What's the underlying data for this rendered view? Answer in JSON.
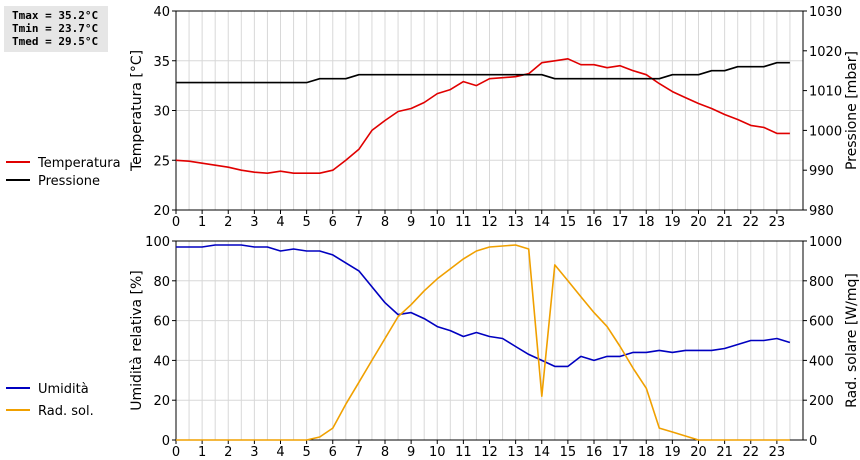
{
  "stats": {
    "tmax": "Tmax = 35.2°C",
    "tmin": "Tmin = 23.7°C",
    "tmed": "Tmed = 29.5°C"
  },
  "chart_data": [
    {
      "type": "line",
      "x_ticks": [
        "0",
        "1",
        "2",
        "3",
        "4",
        "5",
        "6",
        "7",
        "8",
        "9",
        "10",
        "11",
        "12",
        "13",
        "14",
        "15",
        "16",
        "17",
        "18",
        "19",
        "20",
        "21",
        "22",
        "23"
      ],
      "xlim": [
        0,
        24
      ],
      "ylabel_left": "Temperatura [°C]",
      "ylabel_right": "Pressione [mbar]",
      "ylim_left": [
        20,
        40
      ],
      "ylim_right": [
        980,
        1030
      ],
      "yticks_left": [
        20,
        25,
        30,
        35,
        40
      ],
      "yticks_right": [
        980,
        990,
        1000,
        1010,
        1020,
        1030
      ],
      "grid": true,
      "legend_placement": "left",
      "series": [
        {
          "name": "Temperatura",
          "axis": "left",
          "color": "#e00000",
          "x": [
            0,
            0.5,
            1,
            1.5,
            2,
            2.5,
            3,
            3.5,
            4,
            4.5,
            5,
            5.5,
            6,
            6.5,
            7,
            7.5,
            8,
            8.5,
            9,
            9.5,
            10,
            10.5,
            11,
            11.5,
            12,
            12.5,
            13,
            13.5,
            14,
            14.5,
            15,
            15.5,
            16,
            16.5,
            17,
            17.5,
            18,
            18.5,
            19,
            19.5,
            20,
            20.5,
            21,
            21.5,
            22,
            22.5,
            23,
            23.5
          ],
          "y": [
            25.0,
            24.9,
            24.7,
            24.5,
            24.3,
            24.0,
            23.8,
            23.7,
            23.9,
            23.7,
            23.7,
            23.7,
            24.0,
            25.0,
            26.1,
            28.0,
            29.0,
            29.9,
            30.2,
            30.8,
            31.7,
            32.1,
            32.9,
            32.5,
            33.2,
            33.3,
            33.4,
            33.7,
            34.8,
            35.0,
            35.2,
            34.6,
            34.6,
            34.3,
            34.5,
            34.0,
            33.6,
            32.7,
            31.9,
            31.3,
            30.7,
            30.2,
            29.6,
            29.1,
            28.5,
            28.3,
            27.7,
            27.7
          ]
        },
        {
          "name": "Pressione",
          "axis": "right",
          "color": "#000000",
          "x": [
            0,
            0.5,
            1,
            1.5,
            2,
            2.5,
            3,
            3.5,
            4,
            4.5,
            5,
            5.5,
            6,
            6.5,
            7,
            7.5,
            8,
            8.5,
            9,
            9.5,
            10,
            10.5,
            11,
            11.5,
            12,
            12.5,
            13,
            13.5,
            14,
            14.5,
            15,
            15.5,
            16,
            16.5,
            17,
            17.5,
            18,
            18.5,
            19,
            19.5,
            20,
            20.5,
            21,
            21.5,
            22,
            22.5,
            23,
            23.5
          ],
          "y": [
            1012,
            1012,
            1012,
            1012,
            1012,
            1012,
            1012,
            1012,
            1012,
            1012,
            1012,
            1013,
            1013,
            1013,
            1014,
            1014,
            1014,
            1014,
            1014,
            1014,
            1014,
            1014,
            1014,
            1014,
            1014,
            1014,
            1014,
            1014,
            1014,
            1013,
            1013,
            1013,
            1013,
            1013,
            1013,
            1013,
            1013,
            1013,
            1014,
            1014,
            1014,
            1015,
            1015,
            1016,
            1016,
            1016,
            1017,
            1017
          ]
        }
      ]
    },
    {
      "type": "line",
      "x_ticks": [
        "0",
        "1",
        "2",
        "3",
        "4",
        "5",
        "6",
        "7",
        "8",
        "9",
        "10",
        "11",
        "12",
        "13",
        "14",
        "15",
        "16",
        "17",
        "18",
        "19",
        "20",
        "21",
        "22",
        "23"
      ],
      "xlim": [
        0,
        24
      ],
      "ylabel_left": "Umidità relativa [%]",
      "ylabel_right": "Rad. solare [W/mq]",
      "ylim_left": [
        0,
        100
      ],
      "ylim_right": [
        0,
        1000
      ],
      "yticks_left": [
        0,
        20,
        40,
        60,
        80,
        100
      ],
      "yticks_right": [
        0,
        200,
        400,
        600,
        800,
        1000
      ],
      "grid": true,
      "legend_placement": "left",
      "series": [
        {
          "name": "Umidità",
          "axis": "left",
          "color": "#0000c0",
          "x": [
            0,
            0.5,
            1,
            1.5,
            2,
            2.5,
            3,
            3.5,
            4,
            4.5,
            5,
            5.5,
            6,
            6.5,
            7,
            7.5,
            8,
            8.5,
            9,
            9.5,
            10,
            10.5,
            11,
            11.5,
            12,
            12.5,
            13,
            13.5,
            14,
            14.5,
            15,
            15.5,
            16,
            16.5,
            17,
            17.5,
            18,
            18.5,
            19,
            19.5,
            20,
            20.5,
            21,
            21.5,
            22,
            22.5,
            23,
            23.5
          ],
          "y": [
            97,
            97,
            97,
            98,
            98,
            98,
            97,
            97,
            95,
            96,
            95,
            95,
            93,
            89,
            85,
            77,
            69,
            63,
            64,
            61,
            57,
            55,
            52,
            54,
            52,
            51,
            47,
            43,
            40,
            37,
            37,
            42,
            40,
            42,
            42,
            44,
            44,
            45,
            44,
            45,
            45,
            45,
            46,
            48,
            50,
            50,
            51,
            49
          ]
        },
        {
          "name": "Rad. sol.",
          "axis": "right",
          "color": "#f0a000",
          "x": [
            0,
            0.5,
            1,
            1.5,
            2,
            2.5,
            3,
            3.5,
            4,
            4.5,
            5,
            5.5,
            6,
            6.5,
            7,
            7.5,
            8,
            8.5,
            9,
            9.5,
            10,
            10.5,
            11,
            11.5,
            12,
            12.5,
            13,
            13.5,
            14,
            14.5,
            15,
            15.5,
            16,
            16.5,
            17,
            17.5,
            18,
            18.5,
            19,
            19.5,
            20,
            20.5,
            21,
            21.5,
            22,
            22.5,
            23,
            23.5
          ],
          "y": [
            0,
            0,
            0,
            0,
            0,
            0,
            0,
            0,
            0,
            0,
            0,
            15,
            60,
            180,
            290,
            400,
            510,
            620,
            680,
            750,
            810,
            860,
            910,
            950,
            970,
            975,
            980,
            960,
            220,
            880,
            800,
            720,
            640,
            570,
            470,
            360,
            260,
            60,
            40,
            20,
            0,
            0,
            0,
            0,
            0,
            0,
            0,
            0
          ]
        }
      ]
    }
  ]
}
